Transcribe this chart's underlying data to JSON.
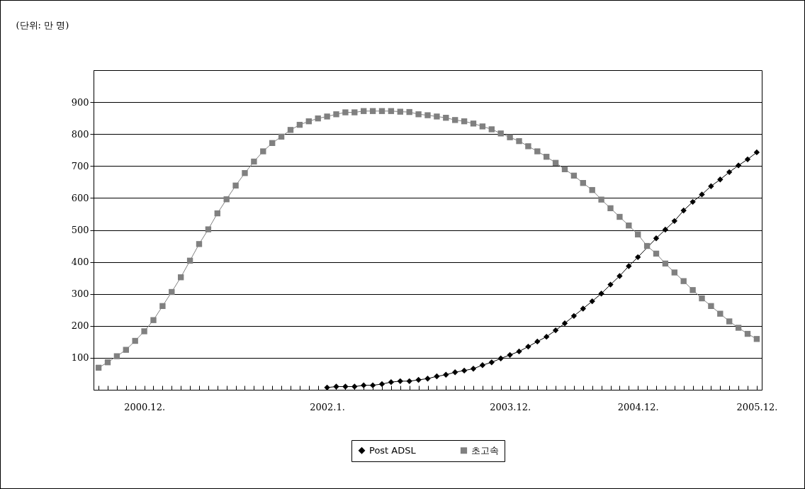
{
  "chart_data": {
    "type": "line",
    "ylabel": "(단위: 만 명)",
    "categories": [
      null,
      null,
      null,
      null,
      null,
      "2000.12.",
      null,
      null,
      null,
      null,
      null,
      null,
      null,
      null,
      null,
      null,
      null,
      null,
      null,
      null,
      null,
      null,
      null,
      null,
      null,
      "2002.1.",
      null,
      null,
      null,
      null,
      null,
      null,
      null,
      null,
      null,
      null,
      null,
      null,
      null,
      null,
      null,
      null,
      null,
      null,
      null,
      "2003.12.",
      null,
      null,
      null,
      null,
      null,
      null,
      null,
      null,
      null,
      null,
      null,
      null,
      null,
      "2004.12.",
      null,
      null,
      null,
      null,
      null,
      null,
      null,
      null,
      null,
      null,
      null,
      null,
      "2005.12."
    ],
    "series": [
      {
        "name": "Post ADSL",
        "color": "#000000",
        "marker": "diamond",
        "values": [
          null,
          null,
          null,
          null,
          null,
          null,
          null,
          null,
          null,
          null,
          null,
          null,
          null,
          null,
          null,
          null,
          null,
          null,
          null,
          null,
          null,
          null,
          null,
          null,
          null,
          7,
          10,
          10,
          10,
          14,
          14,
          18,
          24,
          27,
          27,
          31,
          35,
          42,
          47,
          55,
          60,
          66,
          77,
          86,
          98,
          109,
          120,
          135,
          151,
          166,
          186,
          208,
          231,
          254,
          277,
          301,
          329,
          356,
          387,
          415,
          null,
          474,
          501,
          528,
          561,
          588,
          611,
          637,
          658,
          681,
          702,
          721,
          743
        ]
      },
      {
        "name": "초고속",
        "color": "#808080",
        "marker": "square",
        "values": [
          69,
          86,
          105,
          125,
          153,
          183,
          218,
          262,
          306,
          352,
          404,
          456,
          502,
          552,
          596,
          639,
          678,
          714,
          746,
          772,
          792,
          813,
          829,
          840,
          849,
          855,
          862,
          868,
          868,
          872,
          872,
          872,
          872,
          870,
          869,
          862,
          859,
          855,
          851,
          844,
          840,
          833,
          824,
          815,
          802,
          790,
          778,
          762,
          746,
          729,
          710,
          690,
          670,
          647,
          625,
          595,
          568,
          541,
          514,
          486,
          450,
          426,
          395,
          367,
          340,
          312,
          286,
          262,
          238,
          214,
          194,
          175,
          159
        ]
      }
    ],
    "ylim": [
      0,
      1000
    ],
    "yticks": [
      100,
      200,
      300,
      400,
      500,
      600,
      700,
      800,
      900
    ],
    "grid": "y",
    "legend": "bottom"
  }
}
